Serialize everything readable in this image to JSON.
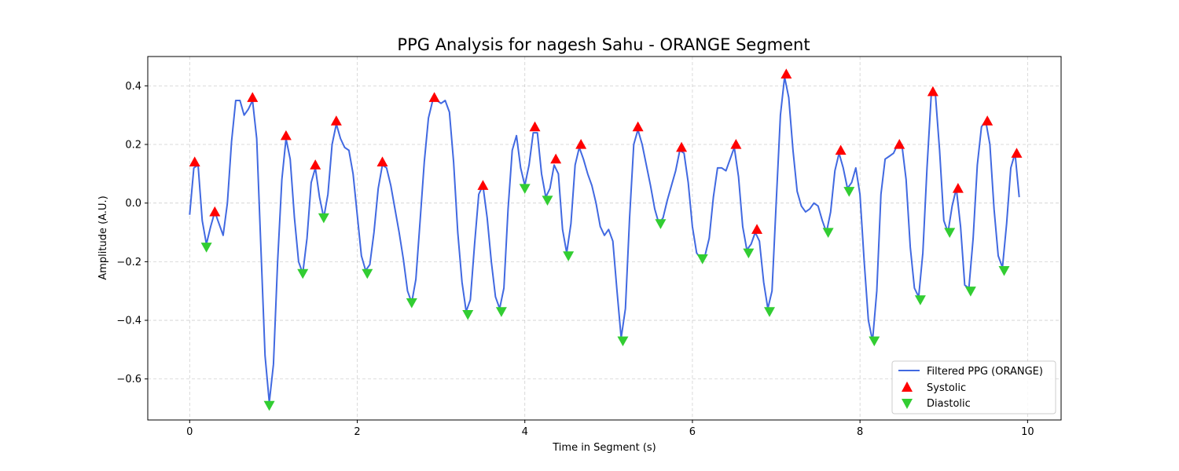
{
  "chart_data": {
    "type": "line",
    "title": "PPG Analysis for nagesh Sahu - ORANGE Segment",
    "xlabel": "Time in Segment (s)",
    "ylabel": "Amplitude (A.U.)",
    "xlim": [
      -0.5,
      10.4
    ],
    "ylim": [
      -0.74,
      0.5
    ],
    "xticks": [
      0,
      2,
      4,
      6,
      8,
      10
    ],
    "yticks": [
      -0.6,
      -0.4,
      -0.2,
      0.0,
      0.2,
      0.4
    ],
    "xtick_labels": [
      "0",
      "2",
      "4",
      "6",
      "8",
      "10"
    ],
    "ytick_labels": [
      "−0.6",
      "−0.4",
      "−0.2",
      "0.0",
      "0.2",
      "0.4"
    ],
    "grid": true,
    "legend_position": "lower-right",
    "series": [
      {
        "name": "Filtered PPG (ORANGE)",
        "kind": "line",
        "color": "#4169e1",
        "points": [
          [
            0.0,
            -0.04
          ],
          [
            0.05,
            0.12
          ],
          [
            0.1,
            0.13
          ],
          [
            0.15,
            -0.06
          ],
          [
            0.2,
            -0.14
          ],
          [
            0.25,
            -0.08
          ],
          [
            0.3,
            -0.03
          ],
          [
            0.35,
            -0.07
          ],
          [
            0.4,
            -0.11
          ],
          [
            0.45,
            0.0
          ],
          [
            0.5,
            0.21
          ],
          [
            0.55,
            0.35
          ],
          [
            0.6,
            0.35
          ],
          [
            0.65,
            0.3
          ],
          [
            0.7,
            0.32
          ],
          [
            0.75,
            0.35
          ],
          [
            0.8,
            0.22
          ],
          [
            0.85,
            -0.15
          ],
          [
            0.9,
            -0.52
          ],
          [
            0.95,
            -0.68
          ],
          [
            1.0,
            -0.55
          ],
          [
            1.05,
            -0.2
          ],
          [
            1.1,
            0.08
          ],
          [
            1.15,
            0.22
          ],
          [
            1.2,
            0.15
          ],
          [
            1.25,
            -0.05
          ],
          [
            1.3,
            -0.2
          ],
          [
            1.35,
            -0.24
          ],
          [
            1.4,
            -0.12
          ],
          [
            1.45,
            0.07
          ],
          [
            1.5,
            0.12
          ],
          [
            1.55,
            0.02
          ],
          [
            1.6,
            -0.05
          ],
          [
            1.65,
            0.03
          ],
          [
            1.7,
            0.2
          ],
          [
            1.75,
            0.27
          ],
          [
            1.8,
            0.22
          ],
          [
            1.85,
            0.19
          ],
          [
            1.9,
            0.18
          ],
          [
            1.95,
            0.1
          ],
          [
            2.0,
            -0.04
          ],
          [
            2.05,
            -0.18
          ],
          [
            2.1,
            -0.23
          ],
          [
            2.15,
            -0.21
          ],
          [
            2.2,
            -0.1
          ],
          [
            2.25,
            0.05
          ],
          [
            2.3,
            0.13
          ],
          [
            2.35,
            0.12
          ],
          [
            2.4,
            0.06
          ],
          [
            2.45,
            -0.02
          ],
          [
            2.5,
            -0.1
          ],
          [
            2.55,
            -0.19
          ],
          [
            2.6,
            -0.3
          ],
          [
            2.65,
            -0.34
          ],
          [
            2.7,
            -0.26
          ],
          [
            2.75,
            -0.06
          ],
          [
            2.8,
            0.14
          ],
          [
            2.85,
            0.29
          ],
          [
            2.9,
            0.35
          ],
          [
            2.95,
            0.35
          ],
          [
            3.0,
            0.34
          ],
          [
            3.05,
            0.35
          ],
          [
            3.1,
            0.31
          ],
          [
            3.15,
            0.14
          ],
          [
            3.2,
            -0.1
          ],
          [
            3.25,
            -0.27
          ],
          [
            3.3,
            -0.37
          ],
          [
            3.35,
            -0.33
          ],
          [
            3.4,
            -0.14
          ],
          [
            3.45,
            0.03
          ],
          [
            3.5,
            0.06
          ],
          [
            3.55,
            -0.05
          ],
          [
            3.6,
            -0.2
          ],
          [
            3.65,
            -0.32
          ],
          [
            3.7,
            -0.36
          ],
          [
            3.75,
            -0.29
          ],
          [
            3.8,
            -0.02
          ],
          [
            3.85,
            0.18
          ],
          [
            3.9,
            0.23
          ],
          [
            3.95,
            0.12
          ],
          [
            4.0,
            0.06
          ],
          [
            4.05,
            0.13
          ],
          [
            4.1,
            0.24
          ],
          [
            4.15,
            0.24
          ],
          [
            4.2,
            0.1
          ],
          [
            4.25,
            0.02
          ],
          [
            4.3,
            0.05
          ],
          [
            4.35,
            0.13
          ],
          [
            4.4,
            0.1
          ],
          [
            4.45,
            -0.09
          ],
          [
            4.5,
            -0.17
          ],
          [
            4.55,
            -0.07
          ],
          [
            4.6,
            0.13
          ],
          [
            4.65,
            0.19
          ],
          [
            4.7,
            0.15
          ],
          [
            4.75,
            0.1
          ],
          [
            4.8,
            0.06
          ],
          [
            4.85,
            0.0
          ],
          [
            4.9,
            -0.08
          ],
          [
            4.95,
            -0.11
          ],
          [
            5.0,
            -0.09
          ],
          [
            5.05,
            -0.13
          ],
          [
            5.1,
            -0.3
          ],
          [
            5.15,
            -0.46
          ],
          [
            5.2,
            -0.36
          ],
          [
            5.25,
            -0.05
          ],
          [
            5.3,
            0.2
          ],
          [
            5.35,
            0.25
          ],
          [
            5.4,
            0.2
          ],
          [
            5.45,
            0.13
          ],
          [
            5.5,
            0.06
          ],
          [
            5.55,
            -0.02
          ],
          [
            5.6,
            -0.07
          ],
          [
            5.65,
            -0.05
          ],
          [
            5.7,
            0.01
          ],
          [
            5.75,
            0.06
          ],
          [
            5.8,
            0.11
          ],
          [
            5.85,
            0.18
          ],
          [
            5.9,
            0.17
          ],
          [
            5.95,
            0.07
          ],
          [
            6.0,
            -0.08
          ],
          [
            6.05,
            -0.17
          ],
          [
            6.1,
            -0.19
          ],
          [
            6.15,
            -0.18
          ],
          [
            6.2,
            -0.12
          ],
          [
            6.25,
            0.02
          ],
          [
            6.3,
            0.12
          ],
          [
            6.35,
            0.12
          ],
          [
            6.4,
            0.11
          ],
          [
            6.45,
            0.15
          ],
          [
            6.5,
            0.19
          ],
          [
            6.55,
            0.09
          ],
          [
            6.6,
            -0.08
          ],
          [
            6.65,
            -0.16
          ],
          [
            6.7,
            -0.14
          ],
          [
            6.75,
            -0.1
          ],
          [
            6.8,
            -0.13
          ],
          [
            6.85,
            -0.27
          ],
          [
            6.9,
            -0.36
          ],
          [
            6.95,
            -0.3
          ],
          [
            7.0,
            0.0
          ],
          [
            7.05,
            0.3
          ],
          [
            7.1,
            0.43
          ],
          [
            7.15,
            0.36
          ],
          [
            7.2,
            0.18
          ],
          [
            7.25,
            0.04
          ],
          [
            7.3,
            -0.01
          ],
          [
            7.35,
            -0.03
          ],
          [
            7.4,
            -0.02
          ],
          [
            7.45,
            0.0
          ],
          [
            7.5,
            -0.01
          ],
          [
            7.55,
            -0.06
          ],
          [
            7.6,
            -0.1
          ],
          [
            7.65,
            -0.03
          ],
          [
            7.7,
            0.11
          ],
          [
            7.75,
            0.17
          ],
          [
            7.8,
            0.12
          ],
          [
            7.85,
            0.05
          ],
          [
            7.9,
            0.07
          ],
          [
            7.95,
            0.12
          ],
          [
            8.0,
            0.03
          ],
          [
            8.05,
            -0.2
          ],
          [
            8.1,
            -0.4
          ],
          [
            8.15,
            -0.47
          ],
          [
            8.2,
            -0.3
          ],
          [
            8.25,
            0.03
          ],
          [
            8.3,
            0.15
          ],
          [
            8.35,
            0.16
          ],
          [
            8.4,
            0.17
          ],
          [
            8.45,
            0.2
          ],
          [
            8.5,
            0.2
          ],
          [
            8.55,
            0.08
          ],
          [
            8.6,
            -0.15
          ],
          [
            8.65,
            -0.29
          ],
          [
            8.7,
            -0.32
          ],
          [
            8.75,
            -0.17
          ],
          [
            8.8,
            0.12
          ],
          [
            8.85,
            0.37
          ],
          [
            8.9,
            0.37
          ],
          [
            8.95,
            0.18
          ],
          [
            9.0,
            -0.06
          ],
          [
            9.05,
            -0.1
          ],
          [
            9.1,
            -0.01
          ],
          [
            9.15,
            0.05
          ],
          [
            9.2,
            -0.08
          ],
          [
            9.25,
            -0.28
          ],
          [
            9.3,
            -0.29
          ],
          [
            9.35,
            -0.12
          ],
          [
            9.4,
            0.13
          ],
          [
            9.45,
            0.26
          ],
          [
            9.5,
            0.28
          ],
          [
            9.55,
            0.2
          ],
          [
            9.6,
            -0.02
          ],
          [
            9.65,
            -0.18
          ],
          [
            9.7,
            -0.22
          ],
          [
            9.75,
            -0.07
          ],
          [
            9.8,
            0.12
          ],
          [
            9.85,
            0.17
          ],
          [
            9.9,
            0.02
          ]
        ]
      },
      {
        "name": "Systolic",
        "kind": "marker",
        "marker": "triangle-up",
        "color": "#ff0000",
        "points": [
          [
            0.06,
            0.14
          ],
          [
            0.3,
            -0.03
          ],
          [
            0.75,
            0.36
          ],
          [
            1.15,
            0.23
          ],
          [
            1.5,
            0.13
          ],
          [
            1.75,
            0.28
          ],
          [
            2.3,
            0.14
          ],
          [
            2.92,
            0.36
          ],
          [
            3.5,
            0.06
          ],
          [
            4.12,
            0.26
          ],
          [
            4.37,
            0.15
          ],
          [
            4.67,
            0.2
          ],
          [
            5.35,
            0.26
          ],
          [
            5.87,
            0.19
          ],
          [
            6.52,
            0.2
          ],
          [
            6.77,
            -0.09
          ],
          [
            7.12,
            0.44
          ],
          [
            7.77,
            0.18
          ],
          [
            8.47,
            0.2
          ],
          [
            8.87,
            0.38
          ],
          [
            9.17,
            0.05
          ],
          [
            9.52,
            0.28
          ],
          [
            9.87,
            0.17
          ]
        ]
      },
      {
        "name": "Diastolic",
        "kind": "marker",
        "marker": "triangle-down",
        "color": "#32cd32",
        "points": [
          [
            0.2,
            -0.15
          ],
          [
            0.95,
            -0.69
          ],
          [
            1.35,
            -0.24
          ],
          [
            1.6,
            -0.05
          ],
          [
            2.12,
            -0.24
          ],
          [
            2.65,
            -0.34
          ],
          [
            3.32,
            -0.38
          ],
          [
            3.72,
            -0.37
          ],
          [
            4.0,
            0.05
          ],
          [
            4.27,
            0.01
          ],
          [
            4.52,
            -0.18
          ],
          [
            5.17,
            -0.47
          ],
          [
            5.62,
            -0.07
          ],
          [
            6.12,
            -0.19
          ],
          [
            6.67,
            -0.17
          ],
          [
            6.92,
            -0.37
          ],
          [
            7.62,
            -0.1
          ],
          [
            7.87,
            0.04
          ],
          [
            8.17,
            -0.47
          ],
          [
            8.72,
            -0.33
          ],
          [
            9.07,
            -0.1
          ],
          [
            9.32,
            -0.3
          ],
          [
            9.72,
            -0.23
          ]
        ]
      }
    ]
  }
}
